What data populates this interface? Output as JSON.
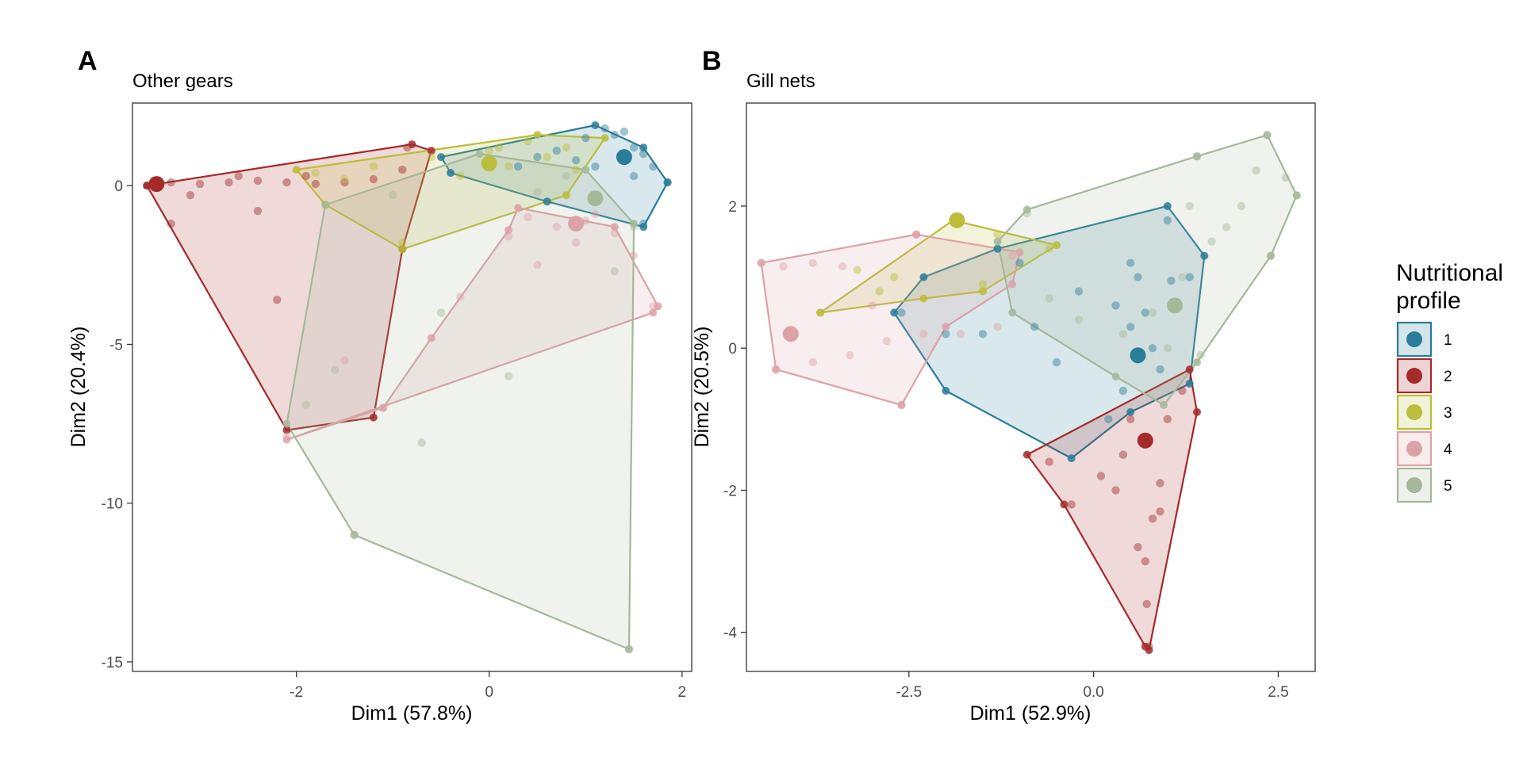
{
  "chart_data": [
    {
      "type": "scatter",
      "panel_label": "A",
      "title": "Other gears",
      "xlabel": "Dim1 (57.8%)",
      "ylabel": "Dim2 (20.4%)",
      "xlim": [
        -3.7,
        2.1
      ],
      "ylim": [
        -15.3,
        2.6
      ],
      "xticks": [
        -2,
        0,
        2
      ],
      "yticks": [
        0,
        -5,
        -10,
        -15
      ],
      "grid": false,
      "series": [
        {
          "name": "1",
          "hull": [
            [
              -0.5,
              0.9
            ],
            [
              1.1,
              1.9
            ],
            [
              1.6,
              1.2
            ],
            [
              1.85,
              0.1
            ],
            [
              1.6,
              -1.3
            ],
            [
              0.6,
              -0.5
            ],
            [
              -0.4,
              0.4
            ]
          ],
          "centroid": [
            1.4,
            0.9
          ],
          "points": [
            [
              1.2,
              1.8
            ],
            [
              1.3,
              1.6
            ],
            [
              1.5,
              1.2
            ],
            [
              1.7,
              0.6
            ],
            [
              1.85,
              0.1
            ],
            [
              1.6,
              -1.2
            ],
            [
              0.9,
              0.8
            ],
            [
              0.7,
              1.1
            ],
            [
              1.0,
              1.5
            ],
            [
              0.5,
              0.9
            ],
            [
              1.4,
              1.7
            ],
            [
              1.1,
              0.6
            ],
            [
              1.6,
              1.0
            ],
            [
              0.3,
              0.6
            ],
            [
              1.5,
              0.3
            ]
          ]
        },
        {
          "name": "2",
          "hull": [
            [
              -3.55,
              0.0
            ],
            [
              -0.8,
              1.3
            ],
            [
              -0.6,
              1.1
            ],
            [
              -0.9,
              -2.0
            ],
            [
              -1.2,
              -7.3
            ],
            [
              -2.1,
              -7.7
            ],
            [
              -3.55,
              0.0
            ]
          ],
          "centroid": [
            -3.45,
            0.05
          ],
          "points": [
            [
              -3.3,
              0.1
            ],
            [
              -3.0,
              0.05
            ],
            [
              -2.7,
              0.1
            ],
            [
              -2.4,
              0.15
            ],
            [
              -2.1,
              0.1
            ],
            [
              -1.8,
              0.05
            ],
            [
              -1.5,
              0.1
            ],
            [
              -1.2,
              0.2
            ],
            [
              -0.9,
              0.5
            ],
            [
              -0.85,
              1.2
            ],
            [
              -3.1,
              -0.3
            ],
            [
              -2.4,
              -0.8
            ],
            [
              -2.2,
              -3.6
            ],
            [
              -3.3,
              -1.2
            ],
            [
              -2.6,
              0.3
            ],
            [
              -1.9,
              0.3
            ]
          ]
        },
        {
          "name": "3",
          "hull": [
            [
              -2.0,
              0.5
            ],
            [
              0.5,
              1.6
            ],
            [
              1.2,
              1.5
            ],
            [
              0.8,
              -0.3
            ],
            [
              -0.9,
              -2.0
            ],
            [
              -1.7,
              -0.6
            ]
          ],
          "centroid": [
            0.0,
            0.7
          ],
          "points": [
            [
              -1.8,
              0.4
            ],
            [
              -1.2,
              0.6
            ],
            [
              -0.6,
              0.9
            ],
            [
              0.0,
              1.1
            ],
            [
              0.4,
              1.4
            ],
            [
              0.8,
              1.2
            ],
            [
              -0.3,
              0.3
            ],
            [
              0.2,
              0.6
            ],
            [
              0.6,
              0.9
            ],
            [
              -0.9,
              -1.8
            ],
            [
              0.1,
              1.2
            ],
            [
              -1.5,
              0.2
            ],
            [
              0.9,
              0.5
            ]
          ]
        },
        {
          "name": "4",
          "hull": [
            [
              0.3,
              -0.7
            ],
            [
              1.3,
              -1.3
            ],
            [
              1.75,
              -3.8
            ],
            [
              1.7,
              -4.0
            ],
            [
              -2.1,
              -8.0
            ],
            [
              -1.1,
              -7.0
            ],
            [
              -0.6,
              -4.8
            ],
            [
              0.2,
              -1.4
            ]
          ],
          "centroid": [
            0.9,
            -1.2
          ],
          "points": [
            [
              0.4,
              -1.0
            ],
            [
              0.7,
              -1.3
            ],
            [
              1.0,
              -1.1
            ],
            [
              1.3,
              -1.5
            ],
            [
              1.5,
              -2.2
            ],
            [
              1.7,
              -3.8
            ],
            [
              -2.1,
              -7.9
            ],
            [
              -1.1,
              -7.0
            ],
            [
              -0.3,
              -3.5
            ],
            [
              0.5,
              -2.5
            ],
            [
              -1.5,
              -5.5
            ],
            [
              0.9,
              -1.8
            ],
            [
              1.1,
              -0.9
            ],
            [
              0.2,
              -1.6
            ]
          ]
        },
        {
          "name": "5",
          "hull": [
            [
              -1.7,
              -0.6
            ],
            [
              -0.1,
              1.0
            ],
            [
              1.0,
              0.5
            ],
            [
              1.5,
              -1.2
            ],
            [
              1.45,
              -14.6
            ],
            [
              -1.4,
              -11.0
            ],
            [
              -2.1,
              -7.5
            ]
          ],
          "centroid": [
            1.1,
            -0.4
          ],
          "points": [
            [
              -1.4,
              -11.0
            ],
            [
              1.45,
              -14.6
            ],
            [
              -0.7,
              -8.1
            ],
            [
              1.3,
              -2.7
            ],
            [
              -1.6,
              -5.8
            ],
            [
              1.5,
              -1.3
            ],
            [
              0.5,
              -0.2
            ],
            [
              -1.0,
              -0.3
            ],
            [
              0.8,
              0.3
            ],
            [
              -0.5,
              -4.0
            ],
            [
              0.2,
              -6.0
            ],
            [
              -1.9,
              -6.9
            ]
          ]
        }
      ]
    },
    {
      "type": "scatter",
      "panel_label": "B",
      "title": "Gill nets",
      "xlabel": "Dim1 (52.9%)",
      "ylabel": "Dim2 (20.5%)",
      "xlim": [
        -4.7,
        3.0
      ],
      "ylim": [
        -4.55,
        3.45
      ],
      "xticks": [
        -2.5,
        0.0,
        2.5
      ],
      "xtick_labels": [
        "-2.5",
        "0.0",
        "2.5"
      ],
      "yticks": [
        2,
        0,
        -2,
        -4
      ],
      "grid": false,
      "series": [
        {
          "name": "1",
          "hull": [
            [
              -2.7,
              0.5
            ],
            [
              -2.3,
              1.0
            ],
            [
              -1.3,
              1.4
            ],
            [
              1.0,
              2.0
            ],
            [
              1.5,
              1.3
            ],
            [
              1.3,
              -0.5
            ],
            [
              0.5,
              -0.9
            ],
            [
              -0.3,
              -1.55
            ],
            [
              -2.0,
              -0.6
            ]
          ],
          "centroid": [
            0.6,
            -0.1
          ],
          "points": [
            [
              -2.6,
              0.5
            ],
            [
              -2.0,
              0.2
            ],
            [
              -1.5,
              0.2
            ],
            [
              -0.8,
              0.3
            ],
            [
              0.3,
              0.6
            ],
            [
              0.6,
              1.0
            ],
            [
              1.0,
              1.8
            ],
            [
              0.2,
              -1.0
            ],
            [
              0.5,
              0.3
            ],
            [
              0.8,
              0.0
            ],
            [
              1.3,
              1.0
            ],
            [
              -0.5,
              -0.2
            ],
            [
              1.05,
              0.95
            ],
            [
              0.5,
              1.2
            ],
            [
              -0.2,
              0.8
            ],
            [
              0.9,
              -0.3
            ],
            [
              0.4,
              -0.6
            ],
            [
              -1.0,
              1.2
            ],
            [
              0.7,
              0.5
            ]
          ]
        },
        {
          "name": "2",
          "hull": [
            [
              -0.9,
              -1.5
            ],
            [
              1.3,
              -0.3
            ],
            [
              1.4,
              -0.9
            ],
            [
              0.75,
              -4.25
            ],
            [
              0.7,
              -4.2
            ],
            [
              -0.4,
              -2.2
            ]
          ],
          "centroid": [
            0.7,
            -1.3
          ],
          "points": [
            [
              -0.3,
              -2.2
            ],
            [
              0.1,
              -1.8
            ],
            [
              0.4,
              -1.5
            ],
            [
              0.7,
              -1.3
            ],
            [
              0.9,
              -1.9
            ],
            [
              0.8,
              -2.4
            ],
            [
              0.7,
              -3.0
            ],
            [
              0.72,
              -3.6
            ],
            [
              0.75,
              -4.2
            ],
            [
              1.2,
              -0.6
            ],
            [
              0.9,
              -2.3
            ],
            [
              0.5,
              -1.0
            ],
            [
              -0.6,
              -1.6
            ],
            [
              0.3,
              -2.0
            ],
            [
              1.0,
              -1.0
            ],
            [
              0.6,
              -2.8
            ]
          ]
        },
        {
          "name": "3",
          "hull": [
            [
              -3.7,
              0.5
            ],
            [
              -1.9,
              1.8
            ],
            [
              -0.5,
              1.45
            ],
            [
              -1.5,
              0.8
            ],
            [
              -2.3,
              0.7
            ]
          ],
          "centroid": [
            -1.85,
            1.8
          ],
          "points": [
            [
              -3.7,
              0.5
            ],
            [
              -3.2,
              1.1
            ],
            [
              -2.7,
              1.0
            ],
            [
              -1.85,
              1.8
            ],
            [
              -1.3,
              1.6
            ],
            [
              -0.6,
              1.4
            ],
            [
              -2.9,
              0.8
            ],
            [
              -1.5,
              0.9
            ]
          ]
        },
        {
          "name": "4",
          "hull": [
            [
              -4.5,
              1.2
            ],
            [
              -2.4,
              1.6
            ],
            [
              -1.0,
              1.35
            ],
            [
              -1.1,
              0.9
            ],
            [
              -2.0,
              0.3
            ],
            [
              -2.6,
              -0.8
            ],
            [
              -4.3,
              -0.3
            ]
          ],
          "centroid": [
            -4.1,
            0.2
          ],
          "points": [
            [
              -4.5,
              1.2
            ],
            [
              -4.2,
              1.15
            ],
            [
              -3.8,
              1.2
            ],
            [
              -3.4,
              1.15
            ],
            [
              -2.4,
              1.6
            ],
            [
              -4.3,
              -0.3
            ],
            [
              -3.8,
              -0.2
            ],
            [
              -3.3,
              -0.1
            ],
            [
              -2.8,
              0.1
            ],
            [
              -2.3,
              0.2
            ],
            [
              -1.8,
              0.2
            ],
            [
              -1.3,
              0.3
            ],
            [
              -2.6,
              -0.8
            ],
            [
              -3.0,
              0.6
            ],
            [
              -1.1,
              1.3
            ]
          ]
        },
        {
          "name": "5",
          "hull": [
            [
              -1.3,
              1.5
            ],
            [
              -0.9,
              1.95
            ],
            [
              1.4,
              2.7
            ],
            [
              2.35,
              3.0
            ],
            [
              2.75,
              2.15
            ],
            [
              2.4,
              1.3
            ],
            [
              1.4,
              -0.2
            ],
            [
              0.95,
              -0.8
            ],
            [
              0.3,
              -0.4
            ],
            [
              -1.1,
              0.5
            ]
          ],
          "centroid": [
            1.1,
            0.6
          ],
          "points": [
            [
              2.35,
              3.0
            ],
            [
              2.75,
              2.15
            ],
            [
              1.4,
              2.7
            ],
            [
              2.4,
              1.3
            ],
            [
              2.0,
              2.0
            ],
            [
              1.6,
              1.5
            ],
            [
              1.2,
              1.0
            ],
            [
              0.8,
              0.5
            ],
            [
              0.4,
              0.2
            ],
            [
              -0.9,
              1.9
            ],
            [
              -0.6,
              0.7
            ],
            [
              1.45,
              -0.1
            ],
            [
              2.2,
              2.5
            ],
            [
              1.8,
              1.7
            ],
            [
              -0.2,
              0.4
            ],
            [
              1.0,
              0.0
            ],
            [
              2.6,
              2.4
            ],
            [
              1.3,
              2.0
            ]
          ]
        }
      ]
    }
  ],
  "legend": {
    "title_line1": "Nutritional",
    "title_line2": "profile",
    "placement": "right",
    "items": [
      {
        "label": "1",
        "color": "#2a7d98"
      },
      {
        "label": "2",
        "color": "#a52a2a"
      },
      {
        "label": "3",
        "color": "#bcbd3a"
      },
      {
        "label": "4",
        "color": "#dda2a7"
      },
      {
        "label": "5",
        "color": "#a6b89a"
      }
    ]
  }
}
